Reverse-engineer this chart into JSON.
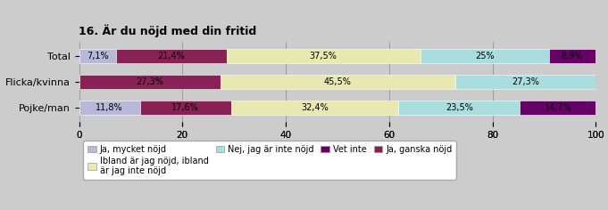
{
  "title": "16. Är du nöjd med din fritid",
  "categories": [
    "Total",
    "Flicka/kvinna",
    "Pojke/man"
  ],
  "series": {
    "Ja, mycket nöjd": [
      7.1,
      0.0,
      11.8
    ],
    "Ja, ganska nöjd": [
      21.4,
      27.3,
      17.6
    ],
    "Ibland är jag nöjd, ibland\när jag inte nöjd": [
      37.5,
      45.5,
      32.4
    ],
    "Nej, jag är inte nöjd": [
      25.0,
      27.3,
      23.5
    ],
    "Vet inte": [
      8.9,
      0.0,
      14.7
    ]
  },
  "colors": {
    "Ja, mycket nöjd": "#b8b8d8",
    "Ja, ganska nöjd": "#882255",
    "Ibland är jag nöjd, ibland\när jag inte nöjd": "#e8e8b0",
    "Nej, jag är inte nöjd": "#aadddd",
    "Vet inte": "#660066"
  },
  "labels": {
    "Ja, mycket nöjd": [
      "7,1%",
      "",
      "11,8%"
    ],
    "Ja, ganska nöjd": [
      "21,4%",
      "27,3%",
      "17,6%"
    ],
    "Ibland är jag nöjd, ibland\när jag inte nöjd": [
      "37,5%",
      "45,5%",
      "32,4%"
    ],
    "Nej, jag är inte nöjd": [
      "25%",
      "27,3%",
      "23,5%"
    ],
    "Vet inte": [
      "8,9%",
      "",
      "14,7%"
    ]
  },
  "background_bar_color": "#c8c8e0",
  "xlim": [
    0,
    100
  ],
  "bar_height": 0.55,
  "background_color": "#cccccc",
  "plot_background": "#cccccc",
  "title_fontsize": 9,
  "label_fontsize": 7,
  "tick_fontsize": 7.5,
  "ytick_fontsize": 8,
  "legend_fontsize": 7
}
